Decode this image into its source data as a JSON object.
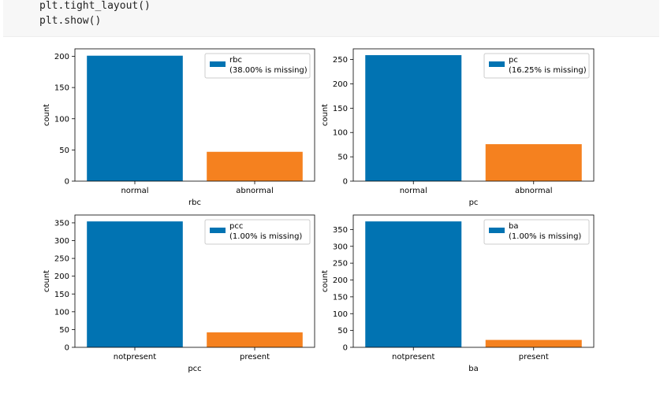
{
  "code": {
    "lines": [
      "plt.tight_layout()",
      "plt.show()"
    ]
  },
  "colors": {
    "series_primary": "#0173b2",
    "series_secondary": "#f5811f",
    "axis": "#000000",
    "code_bg": "#f7f7f7"
  },
  "chart_data": [
    {
      "type": "bar",
      "categories": [
        "normal",
        "abnormal"
      ],
      "values": [
        201,
        47
      ],
      "xlabel": "rbc",
      "ylabel": "count",
      "ylim": [
        0,
        212
      ],
      "yticks": [
        0,
        50,
        100,
        150,
        200
      ],
      "legend": {
        "position": "top-right",
        "name": "rbc",
        "note": "(38.00% is missing)"
      },
      "grid": false
    },
    {
      "type": "bar",
      "categories": [
        "normal",
        "abnormal"
      ],
      "values": [
        259,
        76
      ],
      "xlabel": "pc",
      "ylabel": "count",
      "ylim": [
        0,
        272
      ],
      "yticks": [
        0,
        50,
        100,
        150,
        200,
        250
      ],
      "legend": {
        "position": "top-right",
        "name": "pc",
        "note": "(16.25% is missing)"
      },
      "grid": false
    },
    {
      "type": "bar",
      "categories": [
        "notpresent",
        "present"
      ],
      "values": [
        354,
        42
      ],
      "xlabel": "pcc",
      "ylabel": "count",
      "ylim": [
        0,
        372
      ],
      "yticks": [
        0,
        50,
        100,
        150,
        200,
        250,
        300,
        350
      ],
      "legend": {
        "position": "top-right",
        "name": "pcc",
        "note": "(1.00% is missing)"
      },
      "grid": false
    },
    {
      "type": "bar",
      "categories": [
        "notpresent",
        "present"
      ],
      "values": [
        374,
        22
      ],
      "xlabel": "ba",
      "ylabel": "count",
      "ylim": [
        0,
        393
      ],
      "yticks": [
        0,
        50,
        100,
        150,
        200,
        250,
        300,
        350
      ],
      "legend": {
        "position": "top-right",
        "name": "ba",
        "note": "(1.00% is missing)"
      },
      "grid": false
    }
  ]
}
